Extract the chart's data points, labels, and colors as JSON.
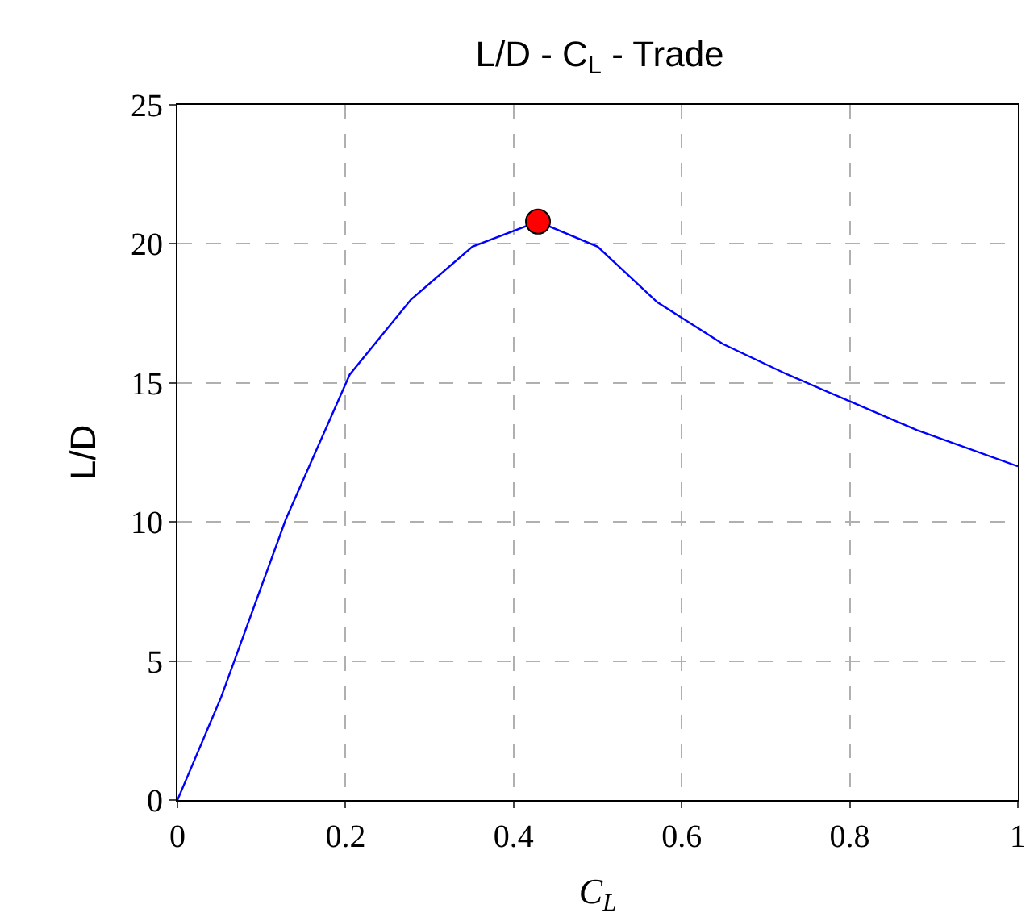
{
  "chart_data": {
    "type": "line",
    "title": "L/D - C$_{L}$ - Trade",
    "xlabel": "C$_{L}$",
    "ylabel": "L/D",
    "xlim": [
      0,
      1
    ],
    "xticks": [
      0,
      0.2,
      0.4,
      0.6,
      0.8,
      1
    ],
    "ylim": [
      0,
      25
    ],
    "yticks": [
      0,
      5,
      10,
      15,
      20,
      25
    ],
    "grid": true,
    "series": [
      {
        "color": "#0000ff",
        "marker": "none",
        "line_style": "solid",
        "x": [
          0,
          0.052,
          0.129,
          0.205,
          0.278,
          0.351,
          0.429,
          0.5,
          0.571,
          0.649,
          0.726,
          0.803,
          0.88,
          1
        ],
        "values": [
          0,
          3.7,
          10.1,
          15.3,
          18.0,
          19.9,
          20.8,
          19.9,
          17.9,
          16.4,
          15.3,
          14.3,
          13.3,
          12.0
        ]
      },
      {
        "type": "scatter",
        "color": "#ff0000",
        "marker": "circle",
        "x": [
          0.429
        ],
        "values": [
          20.8
        ]
      }
    ]
  }
}
